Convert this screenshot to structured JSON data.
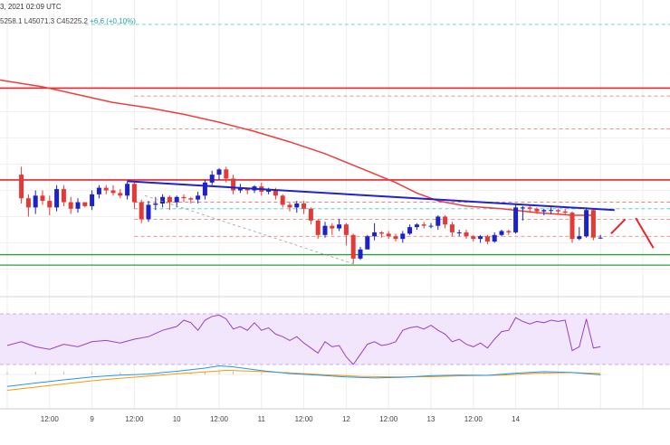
{
  "header": {
    "datetime": "3, 2021 02:09 UTC",
    "ohlc": "5258.1  L45071.3  C45225.2  ",
    "change": "+6.6 (+0.10%)"
  },
  "colors": {
    "up": "#1a22c8",
    "down": "#e53935",
    "ma": "#f03c3c",
    "trendline": "#1e22d2",
    "resistance": "#e8262b",
    "support": "#2e9e3a",
    "rsi_band": "#f1e6fb",
    "rsi_line": "#9b3fc8",
    "macd": "#2196f3",
    "signal": "#ff9800"
  },
  "xaxis": {
    "ticks": [
      "12:00",
      "9",
      "12:00",
      "10",
      "12:00",
      "11",
      "12:00",
      "12",
      "12:00",
      "13",
      "12:00",
      "14"
    ]
  },
  "chart_data": {
    "type": "candlestick",
    "x_unit": "hours since Feb 8, 00:00 UTC (1 bar = 2h)",
    "candles": [
      [
        4,
        52,
        34,
        58,
        30
      ],
      [
        6,
        34,
        27,
        37,
        20
      ],
      [
        8,
        27,
        36,
        40,
        22
      ],
      [
        10,
        36,
        32,
        40,
        29
      ],
      [
        12,
        32,
        27,
        36,
        21
      ],
      [
        14,
        27,
        41,
        44,
        24
      ],
      [
        16,
        41,
        31,
        44,
        28
      ],
      [
        18,
        31,
        26,
        35,
        22
      ],
      [
        20,
        26,
        31,
        34,
        23
      ],
      [
        22,
        31,
        28,
        31,
        27
      ],
      [
        24,
        28,
        37,
        40,
        25
      ],
      [
        26,
        37,
        42,
        44,
        34
      ],
      [
        28,
        42,
        40,
        44,
        37
      ],
      [
        30,
        40,
        38,
        44,
        36
      ],
      [
        32,
        38,
        36,
        41,
        34
      ],
      [
        34,
        36,
        45,
        47,
        33
      ],
      [
        36,
        45,
        31,
        48,
        26
      ],
      [
        38,
        31,
        18,
        33,
        15
      ],
      [
        40,
        18,
        29,
        32,
        16
      ],
      [
        42,
        29,
        30,
        35,
        25
      ],
      [
        44,
        30,
        35,
        37,
        27
      ],
      [
        46,
        35,
        31,
        36,
        25
      ],
      [
        48,
        31,
        35,
        36,
        27
      ],
      [
        50,
        35,
        34,
        37,
        31
      ],
      [
        52,
        34,
        33,
        35,
        30
      ],
      [
        54,
        33,
        36,
        39,
        30
      ],
      [
        56,
        36,
        46,
        48,
        33
      ],
      [
        58,
        46,
        52,
        55,
        44
      ],
      [
        60,
        52,
        56,
        57,
        48
      ],
      [
        62,
        56,
        49,
        58,
        46
      ],
      [
        64,
        49,
        40,
        52,
        37
      ],
      [
        66,
        40,
        42,
        45,
        38
      ],
      [
        68,
        42,
        40,
        42,
        37
      ],
      [
        70,
        40,
        43,
        44,
        38
      ],
      [
        72,
        43,
        39,
        46,
        36
      ],
      [
        74,
        39,
        40,
        42,
        37
      ],
      [
        76,
        40,
        36,
        42,
        33
      ],
      [
        78,
        36,
        29,
        37,
        27
      ],
      [
        80,
        29,
        27,
        31,
        24
      ],
      [
        82,
        27,
        30,
        32,
        23
      ],
      [
        84,
        30,
        26,
        32,
        22
      ],
      [
        86,
        26,
        17,
        27,
        14
      ],
      [
        88,
        17,
        6,
        18,
        3
      ],
      [
        90,
        6,
        13,
        16,
        4
      ],
      [
        92,
        13,
        11,
        15,
        6
      ],
      [
        94,
        11,
        14,
        18,
        9
      ],
      [
        96,
        14,
        6,
        15,
        -2
      ],
      [
        98,
        6,
        -12,
        7,
        -16
      ],
      [
        100,
        -12,
        -5,
        -3,
        -13
      ],
      [
        102,
        -5,
        5,
        6,
        -5
      ],
      [
        104,
        5,
        8,
        15,
        2
      ],
      [
        106,
        8,
        7,
        9,
        4
      ],
      [
        108,
        7,
        5,
        9,
        3
      ],
      [
        110,
        5,
        3,
        7,
        1
      ],
      [
        112,
        3,
        7,
        9,
        0
      ],
      [
        114,
        7,
        12,
        14,
        6
      ],
      [
        116,
        12,
        14,
        15,
        10
      ],
      [
        118,
        14,
        13,
        16,
        11
      ],
      [
        120,
        13,
        13,
        15,
        11
      ],
      [
        122,
        13,
        20,
        21,
        10
      ],
      [
        124,
        20,
        14,
        21,
        11
      ],
      [
        126,
        14,
        8,
        16,
        5
      ],
      [
        128,
        8,
        8,
        10,
        5
      ],
      [
        130,
        8,
        5,
        10,
        3
      ],
      [
        132,
        5,
        3,
        6,
        1
      ],
      [
        134,
        3,
        5,
        6,
        0
      ],
      [
        136,
        5,
        1,
        6,
        -1
      ],
      [
        138,
        1,
        6,
        8,
        0
      ],
      [
        140,
        6,
        9,
        10,
        5
      ],
      [
        142,
        9,
        8,
        10,
        6
      ],
      [
        144,
        8,
        27,
        29,
        7
      ],
      [
        146,
        27,
        27,
        28,
        17
      ],
      [
        148,
        27,
        26,
        29,
        23
      ],
      [
        150,
        26,
        24,
        27,
        22
      ],
      [
        152,
        24,
        25,
        26,
        21
      ],
      [
        154,
        25,
        25,
        27,
        22
      ],
      [
        156,
        25,
        24,
        26,
        22
      ],
      [
        158,
        24,
        23,
        26,
        21
      ],
      [
        160,
        23,
        3,
        24,
        0
      ],
      [
        162,
        3,
        5,
        12,
        2
      ],
      [
        164,
        5,
        25,
        27,
        4
      ],
      [
        166,
        25,
        4,
        26,
        2
      ],
      [
        168,
        4,
        4,
        6,
        3
      ]
    ],
    "moving_average": [
      [
        -4,
        125
      ],
      [
        10,
        119
      ],
      [
        20,
        113
      ],
      [
        30,
        107
      ],
      [
        40,
        103
      ],
      [
        50,
        98
      ],
      [
        60,
        92
      ],
      [
        70,
        85
      ],
      [
        80,
        77
      ],
      [
        90,
        68
      ],
      [
        100,
        57
      ],
      [
        110,
        46
      ],
      [
        116,
        38
      ],
      [
        122,
        32
      ],
      [
        130,
        28
      ],
      [
        140,
        26
      ],
      [
        150,
        23
      ],
      [
        160,
        21
      ],
      [
        166,
        21
      ]
    ],
    "trendline": [
      [
        34,
        47
      ],
      [
        172,
        25
      ]
    ],
    "dashed_projection": [
      [
        39,
        36
      ],
      [
        98,
        -16
      ]
    ],
    "forecast": [
      [
        171,
        7
      ],
      [
        175,
        18
      ],
      [
        178,
        19
      ],
      [
        183,
        -4
      ]
    ],
    "levels": {
      "resistance": [
        118,
        48
      ],
      "support": [
        -9,
        -17
      ],
      "dashed_red": [
        112,
        87,
        31,
        18,
        5
      ],
      "dashed_cyan": [
        26
      ]
    },
    "ylim": [
      -40,
      124
    ],
    "xlim": [
      -2,
      206
    ],
    "rsi": [
      [
        0,
        45
      ],
      [
        4,
        48
      ],
      [
        8,
        44
      ],
      [
        12,
        42
      ],
      [
        16,
        46
      ],
      [
        20,
        44
      ],
      [
        24,
        48
      ],
      [
        28,
        49
      ],
      [
        32,
        47
      ],
      [
        36,
        50
      ],
      [
        40,
        52
      ],
      [
        44,
        57
      ],
      [
        48,
        60
      ],
      [
        50,
        65
      ],
      [
        52,
        63
      ],
      [
        54,
        57
      ],
      [
        56,
        65
      ],
      [
        58,
        68
      ],
      [
        60,
        69
      ],
      [
        62,
        66
      ],
      [
        64,
        58
      ],
      [
        66,
        60
      ],
      [
        68,
        57
      ],
      [
        70,
        63
      ],
      [
        72,
        57
      ],
      [
        74,
        59
      ],
      [
        76,
        54
      ],
      [
        78,
        52
      ],
      [
        80,
        49
      ],
      [
        82,
        52
      ],
      [
        84,
        47
      ],
      [
        86,
        43
      ],
      [
        88,
        39
      ],
      [
        90,
        48
      ],
      [
        92,
        44
      ],
      [
        94,
        45
      ],
      [
        96,
        36
      ],
      [
        98,
        30
      ],
      [
        100,
        38
      ],
      [
        102,
        46
      ],
      [
        104,
        48
      ],
      [
        106,
        45
      ],
      [
        108,
        46
      ],
      [
        110,
        48
      ],
      [
        112,
        57
      ],
      [
        114,
        59
      ],
      [
        116,
        60
      ],
      [
        118,
        58
      ],
      [
        120,
        61
      ],
      [
        122,
        57
      ],
      [
        124,
        54
      ],
      [
        126,
        48
      ],
      [
        128,
        50
      ],
      [
        130,
        46
      ],
      [
        132,
        44
      ],
      [
        134,
        47
      ],
      [
        136,
        43
      ],
      [
        138,
        50
      ],
      [
        140,
        56
      ],
      [
        142,
        57
      ],
      [
        144,
        67
      ],
      [
        146,
        64
      ],
      [
        148,
        62
      ],
      [
        150,
        64
      ],
      [
        152,
        63
      ],
      [
        154,
        65
      ],
      [
        156,
        64
      ],
      [
        158,
        65
      ],
      [
        160,
        41
      ],
      [
        162,
        44
      ],
      [
        164,
        66
      ],
      [
        166,
        43
      ],
      [
        168,
        44
      ]
    ],
    "macd": [
      [
        0,
        -38
      ],
      [
        8,
        -27
      ],
      [
        16,
        -17
      ],
      [
        24,
        -8
      ],
      [
        32,
        -2
      ],
      [
        40,
        1
      ],
      [
        44,
        6
      ],
      [
        48,
        10
      ],
      [
        52,
        15
      ],
      [
        56,
        20
      ],
      [
        60,
        27
      ],
      [
        64,
        24
      ],
      [
        72,
        12
      ],
      [
        80,
        3
      ],
      [
        88,
        -2
      ],
      [
        96,
        -8
      ],
      [
        104,
        -11
      ],
      [
        112,
        -9
      ],
      [
        120,
        -4
      ],
      [
        128,
        -2
      ],
      [
        136,
        -3
      ],
      [
        144,
        4
      ],
      [
        152,
        9
      ],
      [
        160,
        6
      ],
      [
        168,
        -1
      ]
    ],
    "signal": [
      [
        0,
        -50
      ],
      [
        8,
        -40
      ],
      [
        16,
        -30
      ],
      [
        24,
        -20
      ],
      [
        32,
        -12
      ],
      [
        40,
        -5
      ],
      [
        48,
        2
      ],
      [
        56,
        8
      ],
      [
        62,
        13
      ],
      [
        70,
        10
      ],
      [
        80,
        5
      ],
      [
        90,
        -1
      ],
      [
        100,
        -6
      ],
      [
        110,
        -8
      ],
      [
        120,
        -7
      ],
      [
        130,
        -4
      ],
      [
        140,
        -2
      ],
      [
        150,
        4
      ],
      [
        160,
        6
      ],
      [
        168,
        3
      ]
    ]
  }
}
